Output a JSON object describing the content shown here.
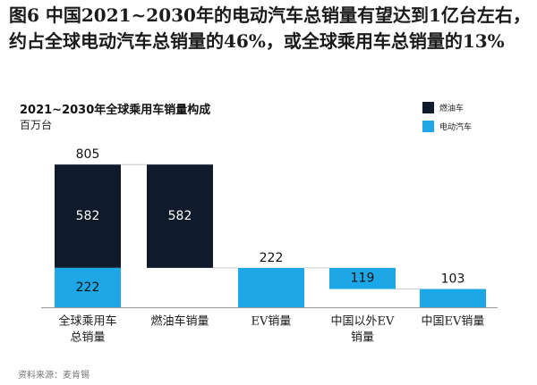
{
  "figure_title": "图6 中国2021~2030年的电动汽车总销量有望达到1亿台左右，约占全球电动汽车总销量的46%，或全球乘用车总销量的13%",
  "source_text": "资料来源：麦肯锡",
  "chart_data": {
    "type": "bar",
    "subtype": "waterfall",
    "title": "2021~2030年全球乘用车销量构成",
    "unit": "百万台",
    "legend_position": "top-right",
    "series": [
      {
        "name": "燃油车",
        "color": "#0f1a2b"
      },
      {
        "name": "电动汽车",
        "color": "#1ea7e6"
      }
    ],
    "categories": [
      "全球乘用车总销量",
      "燃油车销量",
      "EV销量",
      "中国以外EV销量",
      "中国EV销量"
    ],
    "category_labels": [
      [
        "全球乘用车",
        "总销量"
      ],
      [
        "燃油车销量"
      ],
      [
        "EV销量"
      ],
      [
        "中国以外EV",
        "销量"
      ],
      [
        "中国EV销量"
      ]
    ],
    "bars": [
      {
        "category": "全球乘用车总销量",
        "total_label": "805",
        "segments": [
          {
            "series": "燃油车",
            "bottom": 222,
            "top": 804,
            "label": "582"
          },
          {
            "series": "电动汽车",
            "bottom": 0,
            "top": 222,
            "label": "222"
          }
        ]
      },
      {
        "category": "燃油车销量",
        "segments": [
          {
            "series": "燃油车",
            "bottom": 222,
            "top": 804,
            "label": "582"
          }
        ]
      },
      {
        "category": "EV销量",
        "total_label": "222",
        "segments": [
          {
            "series": "电动汽车",
            "bottom": 0,
            "top": 222
          }
        ]
      },
      {
        "category": "中国以外EV销量",
        "segments": [
          {
            "series": "电动汽车",
            "bottom": 103,
            "top": 222,
            "label": "119"
          }
        ]
      },
      {
        "category": "中国EV销量",
        "total_label": "103",
        "segments": [
          {
            "series": "电动汽车",
            "bottom": 0,
            "top": 103
          }
        ]
      }
    ],
    "ylim": [
      0,
      805
    ],
    "grid": false
  }
}
